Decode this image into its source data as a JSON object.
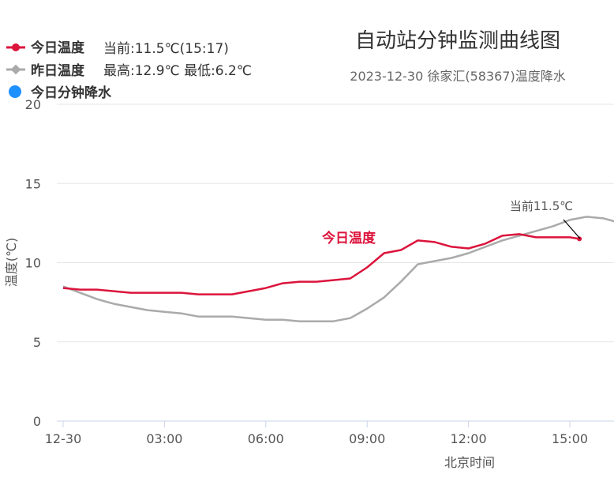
{
  "colors": {
    "today": "#dc143c",
    "yesterday": "#aaaaaa",
    "rain": "#1e90ff",
    "grid": "#e6e6e6",
    "axis": "#c8d4e6"
  },
  "legend": {
    "today": {
      "label": "今日温度",
      "extra": "当前:11.5℃(15:17)"
    },
    "yesterday": {
      "label": "昨日温度",
      "extra": "最高:12.9℃ 最低:6.2℃"
    },
    "rain": {
      "label": "今日分钟降水"
    }
  },
  "chart_data": {
    "type": "line",
    "title": "自动站分钟监测曲线图",
    "subtitle": "2023-12-30 徐家汇(58367)温度降水",
    "xlabel": "北京时间",
    "ylabel": "温度(℃)",
    "xlim": [
      "00:00",
      "16:30"
    ],
    "ylim": [
      0,
      20
    ],
    "x_tick_labels": [
      "12-30",
      "03:00",
      "06:00",
      "09:00",
      "12:00",
      "15:00"
    ],
    "y_tick_labels": [
      "0",
      "5",
      "10",
      "15",
      "20"
    ],
    "grid": true,
    "legend_position": "top-left",
    "series": [
      {
        "name": "今日温度",
        "color": "#dc143c",
        "points": [
          [
            "00:00",
            8.4
          ],
          [
            "00:30",
            8.3
          ],
          [
            "01:00",
            8.3
          ],
          [
            "01:30",
            8.2
          ],
          [
            "02:00",
            8.1
          ],
          [
            "02:30",
            8.1
          ],
          [
            "03:00",
            8.1
          ],
          [
            "03:30",
            8.1
          ],
          [
            "04:00",
            8.0
          ],
          [
            "04:30",
            8.0
          ],
          [
            "05:00",
            8.0
          ],
          [
            "05:30",
            8.2
          ],
          [
            "06:00",
            8.4
          ],
          [
            "06:30",
            8.7
          ],
          [
            "07:00",
            8.8
          ],
          [
            "07:30",
            8.8
          ],
          [
            "08:00",
            8.9
          ],
          [
            "08:30",
            9.0
          ],
          [
            "09:00",
            9.7
          ],
          [
            "09:30",
            10.6
          ],
          [
            "10:00",
            10.8
          ],
          [
            "10:30",
            11.4
          ],
          [
            "11:00",
            11.3
          ],
          [
            "11:30",
            11.0
          ],
          [
            "12:00",
            10.9
          ],
          [
            "12:30",
            11.2
          ],
          [
            "13:00",
            11.7
          ],
          [
            "13:30",
            11.8
          ],
          [
            "14:00",
            11.6
          ],
          [
            "14:30",
            11.6
          ],
          [
            "15:00",
            11.6
          ],
          [
            "15:17",
            11.5
          ]
        ]
      },
      {
        "name": "昨日温度",
        "color": "#aaaaaa",
        "points": [
          [
            "00:00",
            8.5
          ],
          [
            "00:30",
            8.1
          ],
          [
            "01:00",
            7.7
          ],
          [
            "01:30",
            7.4
          ],
          [
            "02:00",
            7.2
          ],
          [
            "02:30",
            7.0
          ],
          [
            "03:00",
            6.9
          ],
          [
            "03:30",
            6.8
          ],
          [
            "04:00",
            6.6
          ],
          [
            "04:30",
            6.6
          ],
          [
            "05:00",
            6.6
          ],
          [
            "05:30",
            6.5
          ],
          [
            "06:00",
            6.4
          ],
          [
            "06:30",
            6.4
          ],
          [
            "07:00",
            6.3
          ],
          [
            "07:30",
            6.3
          ],
          [
            "08:00",
            6.3
          ],
          [
            "08:30",
            6.5
          ],
          [
            "09:00",
            7.1
          ],
          [
            "09:30",
            7.8
          ],
          [
            "10:00",
            8.8
          ],
          [
            "10:30",
            9.9
          ],
          [
            "11:00",
            10.1
          ],
          [
            "11:30",
            10.3
          ],
          [
            "12:00",
            10.6
          ],
          [
            "12:30",
            11.0
          ],
          [
            "13:00",
            11.4
          ],
          [
            "13:30",
            11.7
          ],
          [
            "14:00",
            12.0
          ],
          [
            "14:30",
            12.3
          ],
          [
            "15:00",
            12.7
          ],
          [
            "15:30",
            12.9
          ],
          [
            "16:00",
            12.8
          ],
          [
            "16:30",
            12.5
          ]
        ]
      }
    ],
    "annotations": [
      {
        "text": "今日温度",
        "series": "今日温度"
      },
      {
        "text": "当前11.5℃",
        "series": "今日温度"
      }
    ]
  }
}
